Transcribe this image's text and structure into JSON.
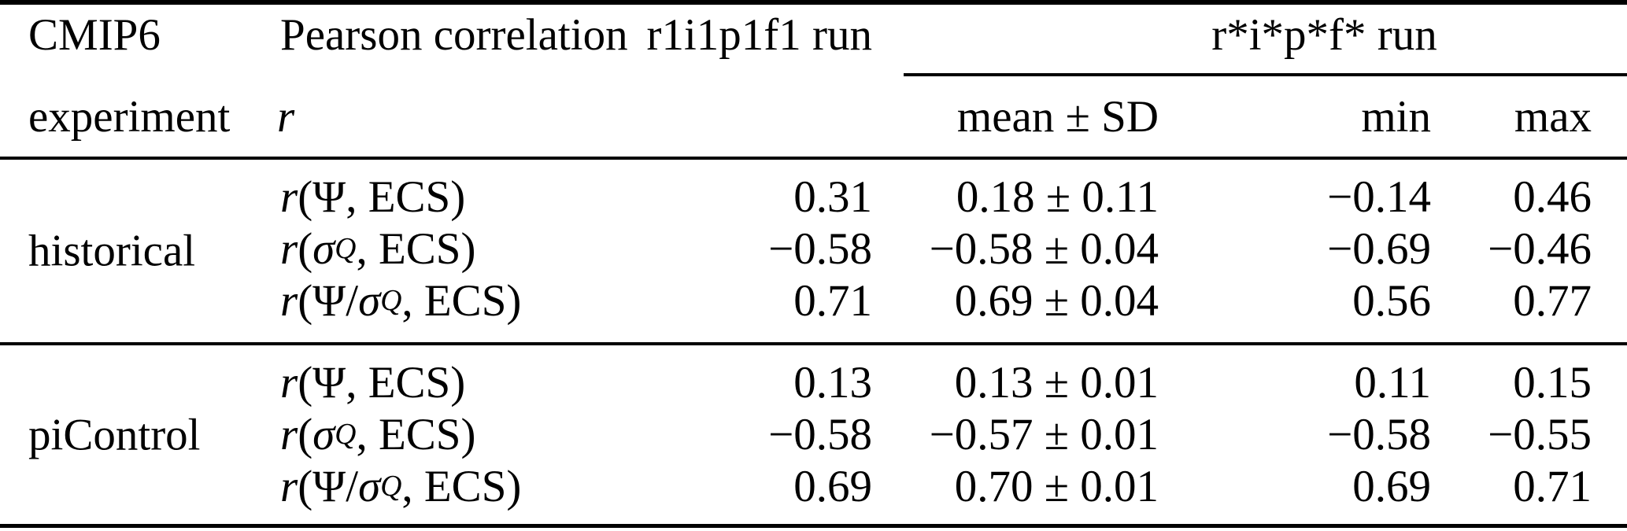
{
  "table": {
    "header": {
      "experiment_line1": "CMIP6",
      "experiment_line2": "experiment",
      "correlation_line1": "Pearson correlation",
      "correlation_line2": "r",
      "r1_run": "r1i1p1f1 run",
      "group_run": "r*i*p*f* run",
      "mean_sd": "mean ± SD",
      "min": "min",
      "max": "max"
    },
    "sections": [
      {
        "experiment": "historical",
        "rows": [
          {
            "formula": [
              {
                "s": "i",
                "t": "r"
              },
              {
                "s": "n",
                "t": "(Ψ, ECS)"
              }
            ],
            "r1": "0.31",
            "mean_sd": "0.18 ± 0.11",
            "min": "−0.14",
            "max": "0.46"
          },
          {
            "formula": [
              {
                "s": "i",
                "t": "r"
              },
              {
                "s": "n",
                "t": "("
              },
              {
                "s": "i",
                "t": "σ"
              },
              {
                "s": "q",
                "t": "Q"
              },
              {
                "s": "n",
                "t": ", ECS)"
              }
            ],
            "r1": "−0.58",
            "mean_sd": "−0.58 ± 0.04",
            "min": "−0.69",
            "max": "−0.46"
          },
          {
            "formula": [
              {
                "s": "i",
                "t": "r"
              },
              {
                "s": "n",
                "t": "(Ψ/"
              },
              {
                "s": "i",
                "t": "σ"
              },
              {
                "s": "q",
                "t": "Q"
              },
              {
                "s": "n",
                "t": ", ECS)"
              }
            ],
            "r1": "0.71",
            "mean_sd": "0.69 ± 0.04",
            "min": "0.56",
            "max": "0.77"
          }
        ]
      },
      {
        "experiment": "piControl",
        "rows": [
          {
            "formula": [
              {
                "s": "i",
                "t": "r"
              },
              {
                "s": "n",
                "t": "(Ψ, ECS)"
              }
            ],
            "r1": "0.13",
            "mean_sd": "0.13 ± 0.01",
            "min": "0.11",
            "max": "0.15"
          },
          {
            "formula": [
              {
                "s": "i",
                "t": "r"
              },
              {
                "s": "n",
                "t": "("
              },
              {
                "s": "i",
                "t": "σ"
              },
              {
                "s": "q",
                "t": "Q"
              },
              {
                "s": "n",
                "t": ", ECS)"
              }
            ],
            "r1": "−0.58",
            "mean_sd": "−0.57 ± 0.01",
            "min": "−0.58",
            "max": "−0.55"
          },
          {
            "formula": [
              {
                "s": "i",
                "t": "r"
              },
              {
                "s": "n",
                "t": "(Ψ/"
              },
              {
                "s": "i",
                "t": "σ"
              },
              {
                "s": "q",
                "t": "Q"
              },
              {
                "s": "n",
                "t": ", ECS)"
              }
            ],
            "r1": "0.69",
            "mean_sd": "0.70 ± 0.01",
            "min": "0.69",
            "max": "0.71"
          }
        ]
      }
    ]
  },
  "colors": {
    "text": "#000000",
    "rule": "#000000",
    "background": "#ffffff"
  }
}
